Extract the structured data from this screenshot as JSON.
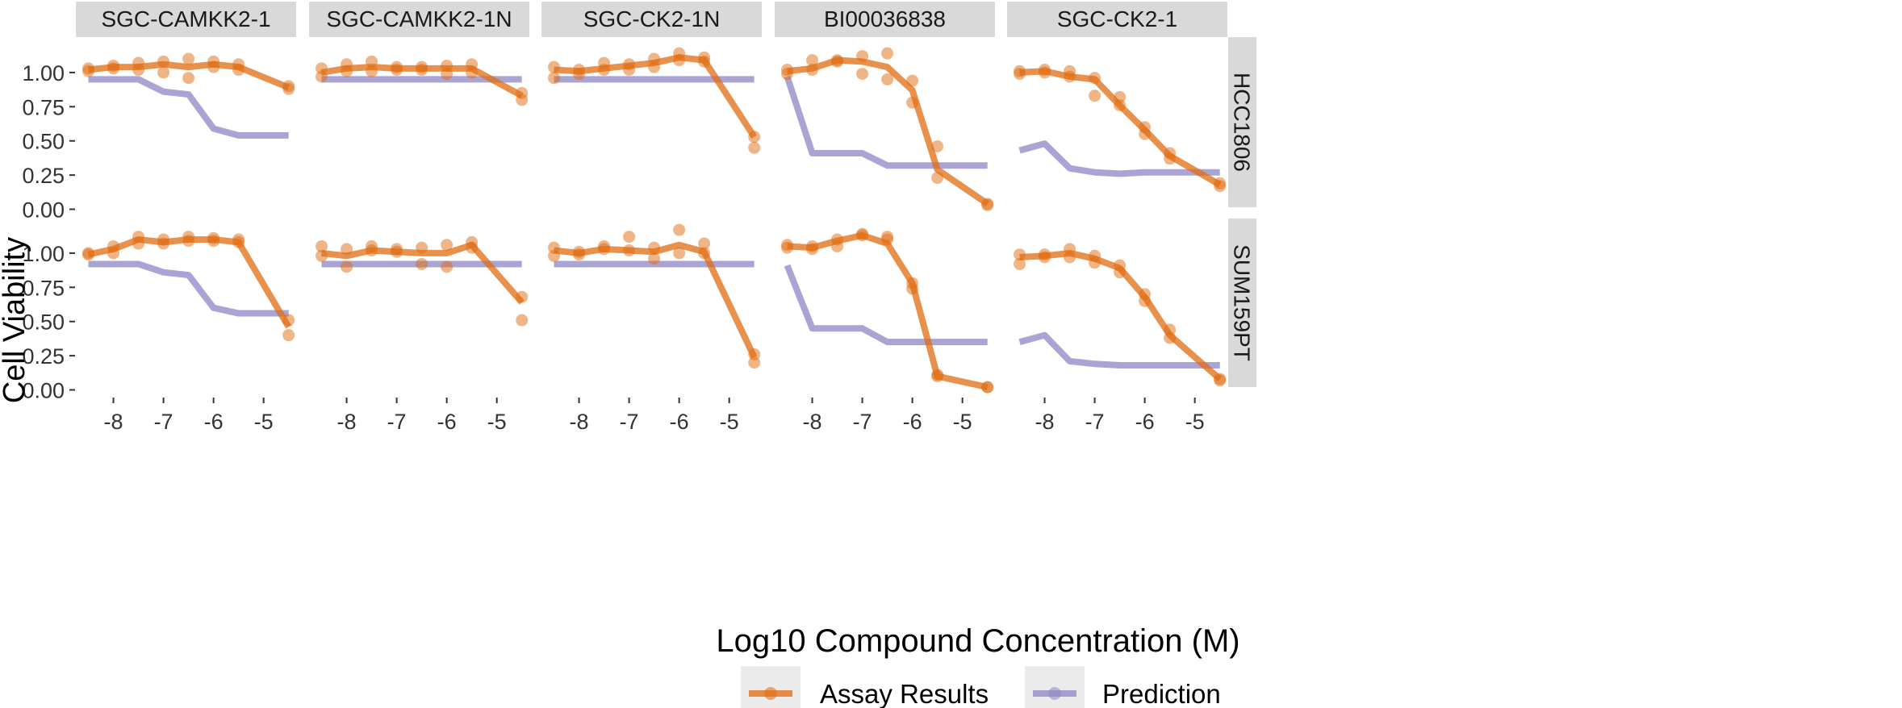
{
  "chart_data": {
    "type": "line",
    "title": "",
    "xlabel": "Log10 Compound Concentration (M)",
    "ylabel": "Cell Viability",
    "xlim": [
      -8.75,
      -4.35
    ],
    "ylim": [
      -0.05,
      1.2
    ],
    "xticks": [
      -8,
      -7,
      -6,
      -5
    ],
    "xtick_labels": [
      "-8",
      "-7",
      "-6",
      "-5"
    ],
    "yticks": [
      0,
      0.25,
      0.5,
      0.75,
      1.0
    ],
    "ytick_labels": [
      "0.00",
      "0.25",
      "0.50",
      "0.75",
      "1.00"
    ],
    "columns": [
      "SGC-CAMKK2-1",
      "SGC-CAMKK2-1N",
      "SGC-CK2-1N",
      "BI00036838",
      "SGC-CK2-1"
    ],
    "rows": [
      "HCC1806",
      "SUM159PT"
    ],
    "x": [
      -8.5,
      -8,
      -7.5,
      -7,
      -6.5,
      -6,
      -5.5,
      -4.5
    ],
    "series_styles": {
      "assay": {
        "name": "Assay Results",
        "color": "#E06C10"
      },
      "prediction": {
        "name": "Prediction",
        "color": "#8C86C4"
      }
    },
    "legend": {
      "position": "bottom",
      "labels": [
        "Assay Results",
        "Prediction"
      ]
    },
    "panels": [
      {
        "row": "HCC1806",
        "column": "SGC-CAMKK2-1",
        "assay_mean": [
          1.02,
          1.04,
          1.04,
          1.06,
          1.04,
          1.06,
          1.04,
          0.89
        ],
        "prediction": [
          0.95,
          0.95,
          0.95,
          0.86,
          0.84,
          0.59,
          0.54,
          0.54
        ],
        "assay_points": [
          [
            -8.5,
            1.01
          ],
          [
            -8.5,
            1.03
          ],
          [
            -8,
            1.03
          ],
          [
            -8,
            1.05
          ],
          [
            -7.5,
            1.02
          ],
          [
            -7.5,
            1.07
          ],
          [
            -7,
            1.0
          ],
          [
            -7,
            1.08
          ],
          [
            -6.5,
            0.96
          ],
          [
            -6.5,
            1.1
          ],
          [
            -6,
            1.04
          ],
          [
            -6,
            1.08
          ],
          [
            -5.5,
            1.02
          ],
          [
            -5.5,
            1.06
          ],
          [
            -4.5,
            0.88
          ],
          [
            -4.5,
            0.9
          ]
        ]
      },
      {
        "row": "HCC1806",
        "column": "SGC-CAMKK2-1N",
        "assay_mean": [
          1.0,
          1.03,
          1.04,
          1.03,
          1.03,
          1.03,
          1.03,
          0.83
        ],
        "prediction": [
          0.95,
          0.95,
          0.95,
          0.95,
          0.95,
          0.95,
          0.95,
          0.95
        ],
        "assay_points": [
          [
            -8.5,
            0.97
          ],
          [
            -8.5,
            1.03
          ],
          [
            -8,
            1.01
          ],
          [
            -8,
            1.06
          ],
          [
            -7.5,
            1.01
          ],
          [
            -7.5,
            1.08
          ],
          [
            -7,
            1.02
          ],
          [
            -7,
            1.04
          ],
          [
            -6.5,
            1.02
          ],
          [
            -6.5,
            1.04
          ],
          [
            -6,
            0.99
          ],
          [
            -6,
            1.05
          ],
          [
            -5.5,
            1.0
          ],
          [
            -5.5,
            1.06
          ],
          [
            -4.5,
            0.8
          ],
          [
            -4.5,
            0.85
          ]
        ]
      },
      {
        "row": "HCC1806",
        "column": "SGC-CK2-1N",
        "assay_mean": [
          1.02,
          1.01,
          1.03,
          1.05,
          1.07,
          1.11,
          1.09,
          0.53
        ],
        "prediction": [
          0.95,
          0.95,
          0.95,
          0.95,
          0.95,
          0.95,
          0.95,
          0.95
        ],
        "assay_points": [
          [
            -8.5,
            0.96
          ],
          [
            -8.5,
            1.04
          ],
          [
            -8,
            0.99
          ],
          [
            -8,
            1.02
          ],
          [
            -7.5,
            1.02
          ],
          [
            -7.5,
            1.07
          ],
          [
            -7,
            1.02
          ],
          [
            -7,
            1.06
          ],
          [
            -6.5,
            1.04
          ],
          [
            -6.5,
            1.1
          ],
          [
            -6,
            1.09
          ],
          [
            -6,
            1.14
          ],
          [
            -5.5,
            1.08
          ],
          [
            -5.5,
            1.11
          ],
          [
            -4.5,
            0.45
          ],
          [
            -4.5,
            0.53
          ]
        ]
      },
      {
        "row": "HCC1806",
        "column": "BI00036838",
        "assay_mean": [
          1.01,
          1.03,
          1.09,
          1.08,
          1.04,
          0.87,
          0.29,
          0.04
        ],
        "prediction": [
          0.97,
          0.41,
          0.41,
          0.41,
          0.32,
          0.32,
          0.32,
          0.32
        ],
        "assay_points": [
          [
            -8.5,
            0.99
          ],
          [
            -8.5,
            1.02
          ],
          [
            -8,
            1.02
          ],
          [
            -8,
            1.09
          ],
          [
            -7.5,
            1.08
          ],
          [
            -7.5,
            1.09
          ],
          [
            -7,
            0.99
          ],
          [
            -7,
            1.12
          ],
          [
            -6.5,
            0.95
          ],
          [
            -6.5,
            1.14
          ],
          [
            -6,
            0.78
          ],
          [
            -6,
            0.94
          ],
          [
            -5.5,
            0.23
          ],
          [
            -5.5,
            0.46
          ],
          [
            -4.5,
            0.03
          ],
          [
            -4.5,
            0.04
          ]
        ]
      },
      {
        "row": "HCC1806",
        "column": "SGC-CK2-1",
        "assay_mean": [
          1.0,
          1.01,
          0.97,
          0.95,
          0.76,
          0.58,
          0.39,
          0.18
        ],
        "prediction": [
          0.43,
          0.48,
          0.3,
          0.27,
          0.26,
          0.27,
          0.27,
          0.27
        ],
        "assay_points": [
          [
            -8.5,
            0.99
          ],
          [
            -8.5,
            1.01
          ],
          [
            -8,
            1.0
          ],
          [
            -8,
            1.02
          ],
          [
            -7.5,
            0.97
          ],
          [
            -7.5,
            1.01
          ],
          [
            -7,
            0.83
          ],
          [
            -7,
            0.96
          ],
          [
            -6.5,
            0.76
          ],
          [
            -6.5,
            0.82
          ],
          [
            -6,
            0.55
          ],
          [
            -6,
            0.6
          ],
          [
            -5.5,
            0.37
          ],
          [
            -5.5,
            0.41
          ],
          [
            -4.5,
            0.17
          ],
          [
            -4.5,
            0.19
          ]
        ]
      },
      {
        "row": "SUM159PT",
        "column": "SGC-CAMKK2-1",
        "assay_mean": [
          0.99,
          1.03,
          1.1,
          1.08,
          1.1,
          1.1,
          1.08,
          0.46
        ],
        "prediction": [
          0.92,
          0.92,
          0.92,
          0.86,
          0.84,
          0.6,
          0.56,
          0.56
        ],
        "assay_points": [
          [
            -8.5,
            0.99
          ],
          [
            -8.5,
            1.0
          ],
          [
            -8,
            1.0
          ],
          [
            -8,
            1.05
          ],
          [
            -7.5,
            1.07
          ],
          [
            -7.5,
            1.12
          ],
          [
            -7,
            1.07
          ],
          [
            -7,
            1.1
          ],
          [
            -6.5,
            1.09
          ],
          [
            -6.5,
            1.12
          ],
          [
            -6,
            1.09
          ],
          [
            -6,
            1.11
          ],
          [
            -5.5,
            1.08
          ],
          [
            -5.5,
            1.1
          ],
          [
            -4.5,
            0.4
          ],
          [
            -4.5,
            0.51
          ]
        ]
      },
      {
        "row": "SUM159PT",
        "column": "SGC-CAMKK2-1N",
        "assay_mean": [
          1.0,
          0.98,
          1.02,
          1.01,
          1.0,
          1.0,
          1.06,
          0.64
        ],
        "prediction": [
          0.92,
          0.92,
          0.92,
          0.92,
          0.92,
          0.92,
          0.92,
          0.92
        ],
        "assay_points": [
          [
            -8.5,
            0.98
          ],
          [
            -8.5,
            1.05
          ],
          [
            -8,
            0.9
          ],
          [
            -8,
            1.03
          ],
          [
            -7.5,
            1.02
          ],
          [
            -7.5,
            1.05
          ],
          [
            -7,
            1.01
          ],
          [
            -7,
            1.03
          ],
          [
            -6.5,
            0.92
          ],
          [
            -6.5,
            1.04
          ],
          [
            -6,
            0.9
          ],
          [
            -6,
            1.06
          ],
          [
            -5.5,
            1.04
          ],
          [
            -5.5,
            1.08
          ],
          [
            -4.5,
            0.51
          ],
          [
            -4.5,
            0.68
          ]
        ]
      },
      {
        "row": "SUM159PT",
        "column": "SGC-CK2-1N",
        "assay_mean": [
          1.02,
          1.0,
          1.03,
          1.02,
          1.01,
          1.06,
          1.01,
          0.24
        ],
        "prediction": [
          0.92,
          0.92,
          0.92,
          0.92,
          0.92,
          0.92,
          0.92,
          0.92
        ],
        "assay_points": [
          [
            -8.5,
            0.98
          ],
          [
            -8.5,
            1.04
          ],
          [
            -8,
            0.99
          ],
          [
            -8,
            1.01
          ],
          [
            -7.5,
            1.03
          ],
          [
            -7.5,
            1.05
          ],
          [
            -7,
            1.02
          ],
          [
            -7,
            1.12
          ],
          [
            -6.5,
            0.96
          ],
          [
            -6.5,
            1.04
          ],
          [
            -6,
            1.0
          ],
          [
            -6,
            1.17
          ],
          [
            -5.5,
            1.0
          ],
          [
            -5.5,
            1.07
          ],
          [
            -4.5,
            0.2
          ],
          [
            -4.5,
            0.26
          ]
        ]
      },
      {
        "row": "SUM159PT",
        "column": "BI00036838",
        "assay_mean": [
          1.05,
          1.04,
          1.09,
          1.13,
          1.07,
          0.78,
          0.1,
          0.02
        ],
        "prediction": [
          0.91,
          0.45,
          0.45,
          0.45,
          0.35,
          0.35,
          0.35,
          0.35
        ],
        "assay_points": [
          [
            -8.5,
            1.04
          ],
          [
            -8.5,
            1.06
          ],
          [
            -8,
            1.03
          ],
          [
            -8,
            1.05
          ],
          [
            -7.5,
            1.05
          ],
          [
            -7.5,
            1.1
          ],
          [
            -7,
            1.13
          ],
          [
            -7,
            1.14
          ],
          [
            -6.5,
            1.1
          ],
          [
            -6.5,
            1.12
          ],
          [
            -6,
            0.74
          ],
          [
            -6,
            0.78
          ],
          [
            -5.5,
            0.1
          ],
          [
            -5.5,
            0.11
          ],
          [
            -4.5,
            0.02
          ],
          [
            -4.5,
            0.02
          ]
        ]
      },
      {
        "row": "SUM159PT",
        "column": "SGC-CK2-1",
        "assay_mean": [
          0.97,
          0.98,
          1.0,
          0.96,
          0.89,
          0.68,
          0.4,
          0.08
        ],
        "prediction": [
          0.35,
          0.4,
          0.21,
          0.19,
          0.18,
          0.18,
          0.18,
          0.18
        ],
        "assay_points": [
          [
            -8.5,
            0.92
          ],
          [
            -8.5,
            0.99
          ],
          [
            -8,
            0.97
          ],
          [
            -8,
            0.99
          ],
          [
            -7.5,
            0.97
          ],
          [
            -7.5,
            1.03
          ],
          [
            -7,
            0.93
          ],
          [
            -7,
            0.98
          ],
          [
            -6.5,
            0.86
          ],
          [
            -6.5,
            0.91
          ],
          [
            -6,
            0.65
          ],
          [
            -6,
            0.7
          ],
          [
            -5.5,
            0.38
          ],
          [
            -5.5,
            0.44
          ],
          [
            -4.5,
            0.07
          ],
          [
            -4.5,
            0.08
          ]
        ]
      }
    ]
  }
}
